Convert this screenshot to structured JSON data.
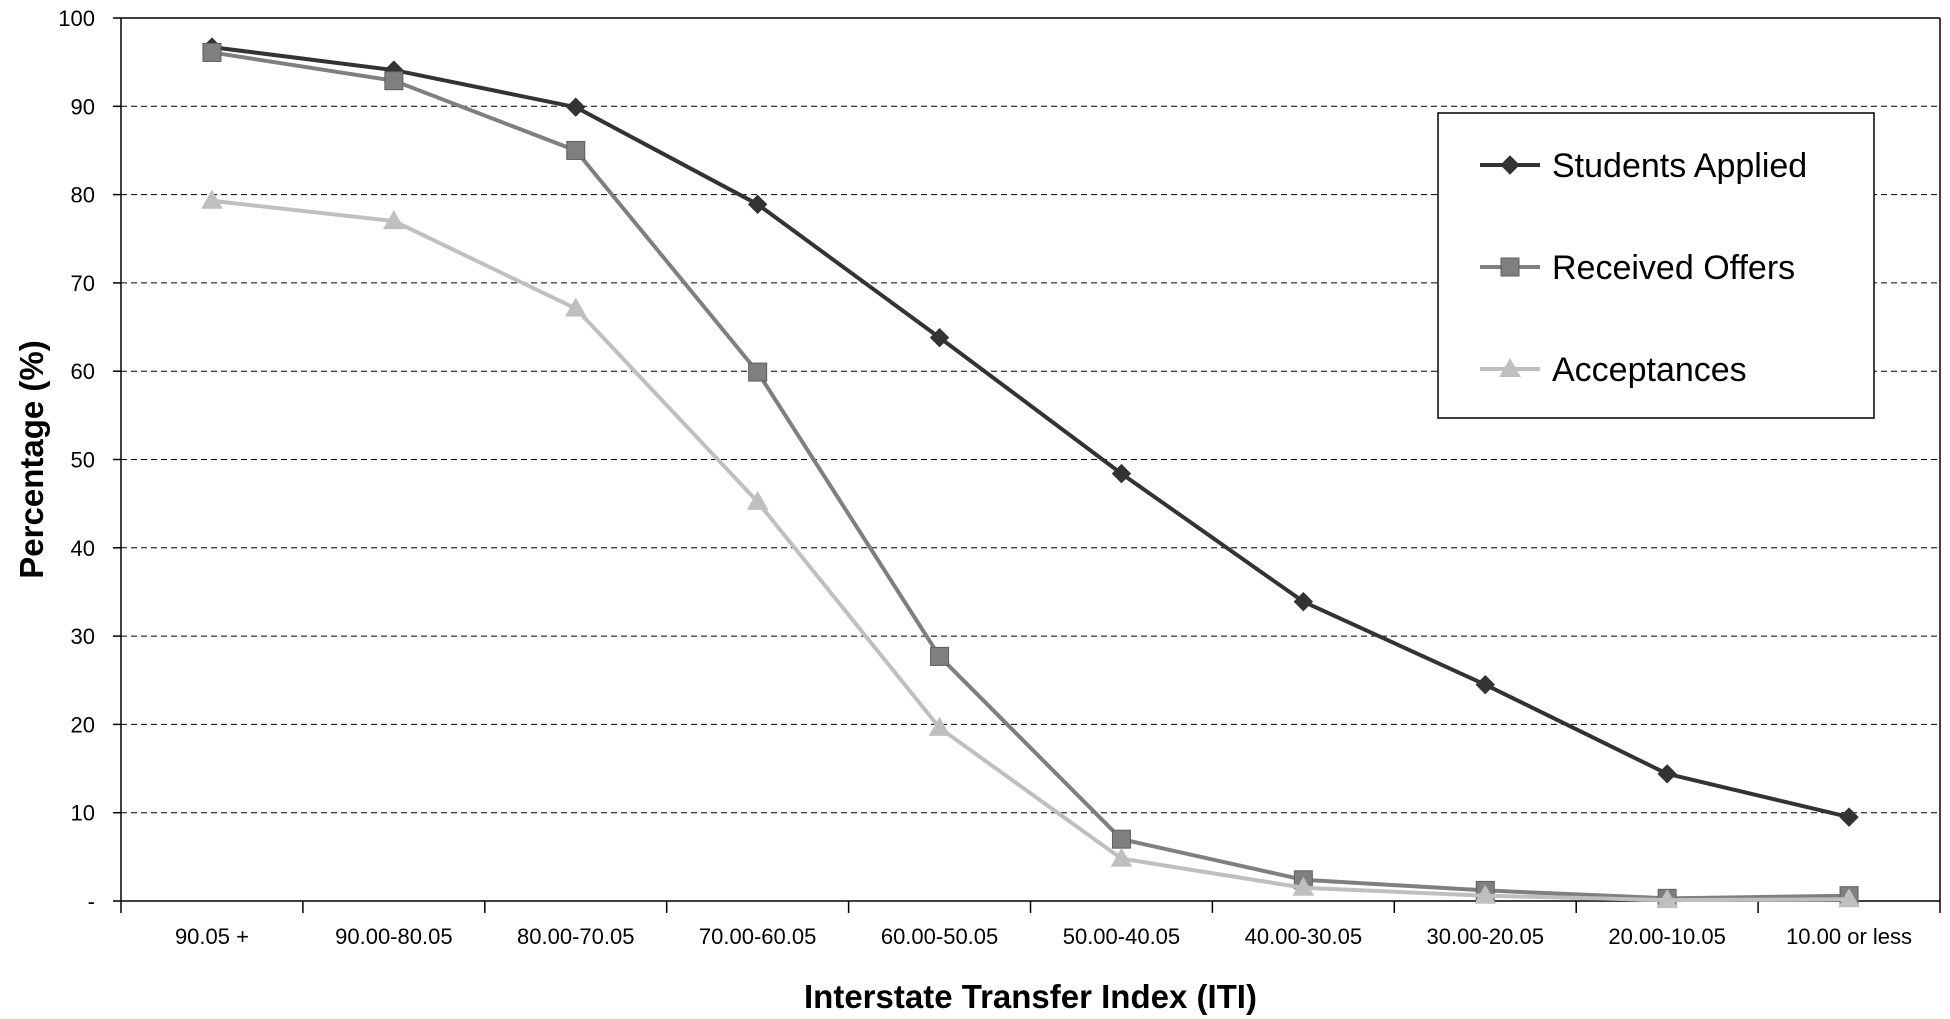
{
  "chart_data": {
    "type": "line",
    "title": "",
    "xlabel": "Interstate Transfer Index (ITI)",
    "ylabel": "Percentage (%)",
    "categories": [
      "90.05 +",
      "90.00-80.05",
      "80.00-70.05",
      "70.00-60.05",
      "60.00-50.05",
      "50.00-40.05",
      "40.00-30.05",
      "30.00-20.05",
      "20.00-10.05",
      "10.00 or less"
    ],
    "ylim": [
      0,
      100
    ],
    "yticks": [
      0,
      10,
      20,
      30,
      40,
      50,
      60,
      70,
      80,
      90,
      100
    ],
    "ytick_labels": [
      "-",
      "10",
      "20",
      "30",
      "40",
      "50",
      "60",
      "70",
      "80",
      "90",
      "100"
    ],
    "grid": "horizontal dashed",
    "legend_position": "right",
    "series": [
      {
        "name": "Students Applied",
        "marker": "diamond",
        "color": "#333333",
        "values": [
          96.7,
          94.1,
          89.9,
          78.9,
          63.8,
          48.4,
          33.9,
          24.5,
          14.4,
          9.5
        ]
      },
      {
        "name": "Received Offers",
        "marker": "square",
        "color": "#7f7f7f",
        "values": [
          96.1,
          92.9,
          85.0,
          59.9,
          27.7,
          7.0,
          2.4,
          1.2,
          0.3,
          0.6
        ]
      },
      {
        "name": "Acceptances",
        "marker": "triangle",
        "color": "#bfbfbf",
        "values": [
          79.3,
          77.0,
          67.1,
          45.2,
          19.6,
          4.8,
          1.5,
          0.6,
          0.1,
          0.2
        ]
      }
    ]
  }
}
